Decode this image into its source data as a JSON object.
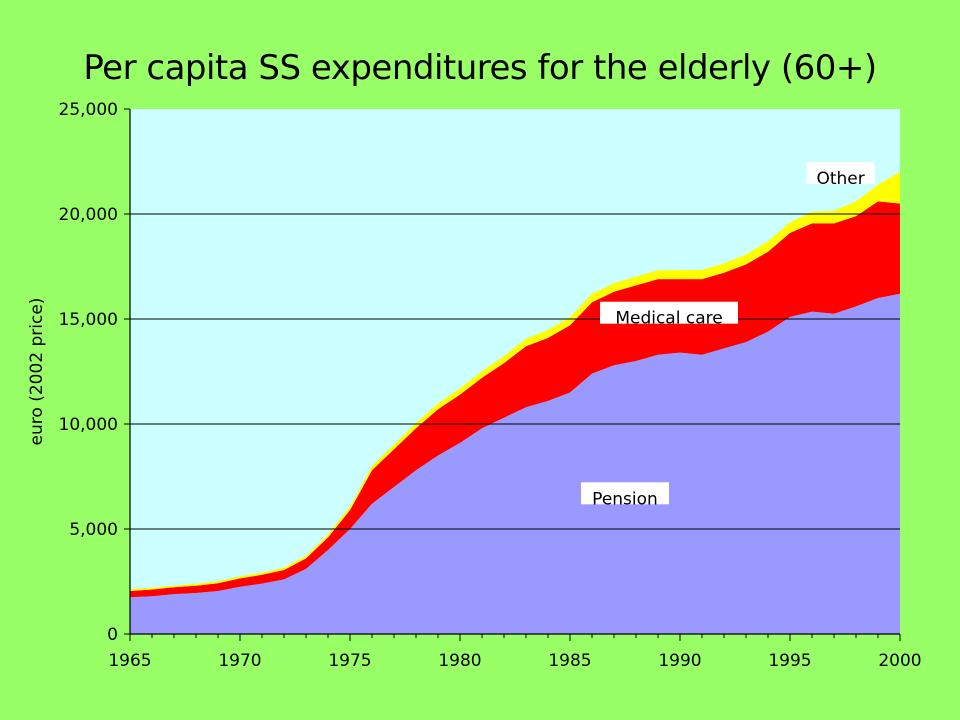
{
  "chart_data": {
    "type": "area",
    "stacked": true,
    "title": "Per capita SS expenditures for the elderly (60+)",
    "ylabel": "euro (2002 price)",
    "xlabel": "",
    "xlim": [
      1965,
      2000
    ],
    "ylim": [
      0,
      25000
    ],
    "x_ticks": [
      "1965",
      "1970",
      "1975",
      "1980",
      "1985",
      "1990",
      "1995",
      "2000"
    ],
    "y_ticks": [
      "0",
      "5,000",
      "10,000",
      "15,000",
      "20,000",
      "25,000"
    ],
    "grid": true,
    "x": [
      1965,
      1966,
      1967,
      1968,
      1969,
      1970,
      1971,
      1972,
      1973,
      1974,
      1975,
      1976,
      1977,
      1978,
      1979,
      1980,
      1981,
      1982,
      1983,
      1984,
      1985,
      1986,
      1987,
      1988,
      1989,
      1990,
      1991,
      1992,
      1993,
      1994,
      1995,
      1996,
      1997,
      1998,
      1999,
      2000
    ],
    "series": [
      {
        "name": "Pension",
        "color": "#9999ff",
        "values": [
          1750,
          1800,
          1900,
          1950,
          2050,
          2250,
          2400,
          2600,
          3100,
          4000,
          5000,
          6200,
          7000,
          7800,
          8500,
          9100,
          9800,
          10300,
          10800,
          11100,
          11500,
          12400,
          12800,
          13000,
          13300,
          13400,
          13300,
          13600,
          13900,
          14400,
          15100,
          15350,
          15250,
          15600,
          16000,
          16200
        ]
      },
      {
        "name": "Medical care",
        "color": "#ff0000",
        "values": [
          300,
          320,
          330,
          350,
          370,
          400,
          420,
          450,
          500,
          600,
          900,
          1600,
          1800,
          2000,
          2200,
          2300,
          2400,
          2600,
          2900,
          3000,
          3200,
          3400,
          3500,
          3600,
          3600,
          3500,
          3600,
          3600,
          3700,
          3800,
          4000,
          4200,
          4300,
          4300,
          4600,
          4300
        ]
      },
      {
        "name": "Other",
        "color": "#ffff00",
        "values": [
          80,
          80,
          80,
          90,
          90,
          100,
          100,
          110,
          120,
          140,
          160,
          200,
          220,
          250,
          280,
          300,
          320,
          340,
          360,
          380,
          380,
          400,
          400,
          420,
          420,
          430,
          440,
          450,
          470,
          500,
          500,
          550,
          600,
          700,
          800,
          1500
        ]
      }
    ],
    "labels": [
      {
        "text": "Pension",
        "x": 1987.5,
        "y": 6700
      },
      {
        "text": "Medical care",
        "x": 1989.5,
        "y": 15300
      },
      {
        "text": "Other",
        "x": 1997.3,
        "y": 21950
      }
    ]
  }
}
